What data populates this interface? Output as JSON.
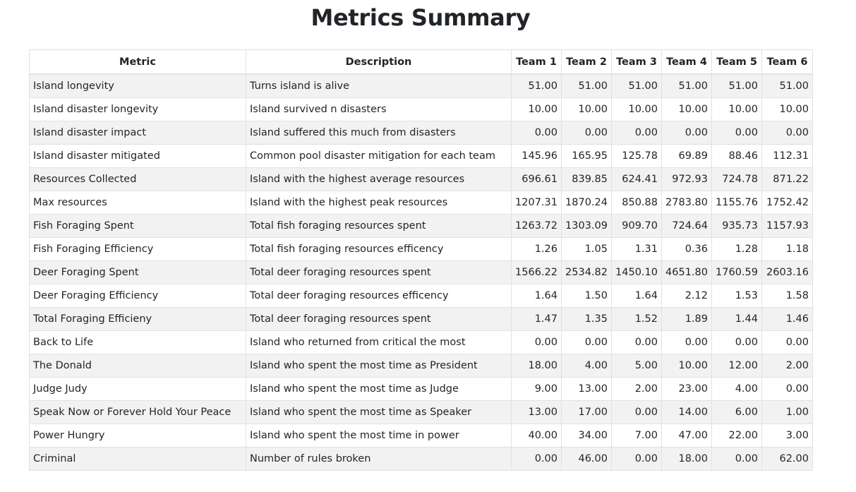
{
  "page": {
    "title": "Metrics Summary"
  },
  "table": {
    "columns": [
      "Metric",
      "Description",
      "Team 1",
      "Team 2",
      "Team 3",
      "Team 4",
      "Team 5",
      "Team 6"
    ],
    "rows": [
      {
        "metric": "Island longevity",
        "description": "Turns island is alive",
        "values": [
          "51.00",
          "51.00",
          "51.00",
          "51.00",
          "51.00",
          "51.00"
        ]
      },
      {
        "metric": "Island disaster longevity",
        "description": "Island survived n disasters",
        "values": [
          "10.00",
          "10.00",
          "10.00",
          "10.00",
          "10.00",
          "10.00"
        ]
      },
      {
        "metric": "Island disaster impact",
        "description": "Island suffered this much from disasters",
        "values": [
          "0.00",
          "0.00",
          "0.00",
          "0.00",
          "0.00",
          "0.00"
        ]
      },
      {
        "metric": "Island disaster mitigated",
        "description": "Common pool disaster mitigation for each team",
        "values": [
          "145.96",
          "165.95",
          "125.78",
          "69.89",
          "88.46",
          "112.31"
        ]
      },
      {
        "metric": "Resources Collected",
        "description": "Island with the highest average resources",
        "values": [
          "696.61",
          "839.85",
          "624.41",
          "972.93",
          "724.78",
          "871.22"
        ]
      },
      {
        "metric": "Max resources",
        "description": "Island with the highest peak resources",
        "values": [
          "1207.31",
          "1870.24",
          "850.88",
          "2783.80",
          "1155.76",
          "1752.42"
        ]
      },
      {
        "metric": "Fish Foraging Spent",
        "description": "Total fish foraging resources spent",
        "values": [
          "1263.72",
          "1303.09",
          "909.70",
          "724.64",
          "935.73",
          "1157.93"
        ]
      },
      {
        "metric": "Fish Foraging Efficiency",
        "description": "Total fish foraging resources efficency",
        "values": [
          "1.26",
          "1.05",
          "1.31",
          "0.36",
          "1.28",
          "1.18"
        ]
      },
      {
        "metric": "Deer Foraging Spent",
        "description": "Total deer foraging resources spent",
        "values": [
          "1566.22",
          "2534.82",
          "1450.10",
          "4651.80",
          "1760.59",
          "2603.16"
        ]
      },
      {
        "metric": "Deer Foraging Efficiency",
        "description": "Total deer foraging resources efficency",
        "values": [
          "1.64",
          "1.50",
          "1.64",
          "2.12",
          "1.53",
          "1.58"
        ]
      },
      {
        "metric": "Total Foraging Efficieny",
        "description": "Total deer foraging resources spent",
        "values": [
          "1.47",
          "1.35",
          "1.52",
          "1.89",
          "1.44",
          "1.46"
        ]
      },
      {
        "metric": "Back to Life",
        "description": "Island who returned from critical the most",
        "values": [
          "0.00",
          "0.00",
          "0.00",
          "0.00",
          "0.00",
          "0.00"
        ]
      },
      {
        "metric": "The Donald",
        "description": "Island who spent the most time as President",
        "values": [
          "18.00",
          "4.00",
          "5.00",
          "10.00",
          "12.00",
          "2.00"
        ]
      },
      {
        "metric": "Judge Judy",
        "description": "Island who spent the most time as Judge",
        "values": [
          "9.00",
          "13.00",
          "2.00",
          "23.00",
          "4.00",
          "0.00"
        ]
      },
      {
        "metric": "Speak Now or Forever Hold Your Peace",
        "description": "Island who spent the most time as Speaker",
        "values": [
          "13.00",
          "17.00",
          "0.00",
          "14.00",
          "6.00",
          "1.00"
        ]
      },
      {
        "metric": "Power Hungry",
        "description": "Island who spent the most time in power",
        "values": [
          "40.00",
          "34.00",
          "7.00",
          "47.00",
          "22.00",
          "3.00"
        ]
      },
      {
        "metric": "Criminal",
        "description": "Number of rules broken",
        "values": [
          "0.00",
          "46.00",
          "0.00",
          "18.00",
          "0.00",
          "62.00"
        ]
      }
    ]
  }
}
